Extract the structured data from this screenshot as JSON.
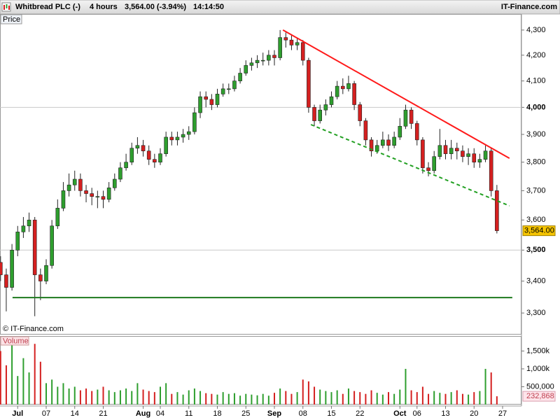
{
  "header": {
    "symbol": "Whitbread PLC (-)",
    "interval": "4 hours",
    "quote": "3,564.00 (-3.94%)",
    "time": "14:14:50",
    "brand": "IT-Finance.com"
  },
  "chart_data": [
    {
      "type": "candlestick",
      "panel_label": "Price",
      "watermark": "© IT-Finance.com",
      "yscale": "log",
      "up_color": "#2e9e2e",
      "down_color": "#d42020",
      "categories": [
        null,
        null,
        null,
        "Jul",
        null,
        null,
        null,
        null,
        "07",
        null,
        null,
        null,
        null,
        "14",
        null,
        null,
        null,
        null,
        "21",
        null,
        null,
        null,
        null,
        null,
        null,
        "Aug",
        null,
        null,
        "04",
        null,
        null,
        null,
        null,
        "11",
        null,
        null,
        null,
        null,
        "18",
        null,
        null,
        null,
        null,
        "25",
        null,
        null,
        null,
        null,
        "Sep",
        null,
        null,
        null,
        null,
        "08",
        null,
        null,
        null,
        null,
        "15",
        null,
        null,
        null,
        null,
        "22",
        null,
        null,
        null,
        null,
        null,
        null,
        "Oct",
        null,
        null,
        "06",
        null,
        null,
        null,
        null,
        "13",
        null,
        null,
        null,
        null,
        "20",
        null,
        null,
        null,
        null,
        "27"
      ],
      "open": [
        3460,
        3420,
        3380,
        3500,
        3560,
        3580,
        3600,
        3420,
        3400,
        3450,
        3580,
        3640,
        3700,
        3720,
        3740,
        3700,
        3690,
        3680,
        3680,
        3670,
        3710,
        3740,
        3780,
        3800,
        3850,
        3860,
        3840,
        3810,
        3800,
        3830,
        3890,
        3880,
        3890,
        3900,
        3910,
        3980,
        4040,
        4030,
        4010,
        4050,
        4070,
        4070,
        4100,
        4130,
        4160,
        4170,
        4180,
        4180,
        4200,
        4190,
        4270,
        4260,
        4240,
        4250,
        4180,
        4000,
        3950,
        3990,
        4010,
        4040,
        4080,
        4070,
        4090,
        4010,
        3950,
        3880,
        3840,
        3860,
        3880,
        3860,
        3890,
        3930,
        3990,
        3940,
        3880,
        3780,
        3770,
        3820,
        3860,
        3830,
        3850,
        3840,
        3820,
        3830,
        3800,
        3810,
        3840,
        3700,
        null
      ],
      "high": [
        3480,
        3440,
        3520,
        3580,
        3610,
        3625,
        3610,
        3440,
        3470,
        3600,
        3670,
        3730,
        3760,
        3770,
        3760,
        3720,
        3710,
        3700,
        3700,
        3730,
        3760,
        3800,
        3830,
        3870,
        3890,
        3880,
        3860,
        3830,
        3850,
        3910,
        3910,
        3910,
        3920,
        3930,
        4000,
        4060,
        4060,
        4050,
        4070,
        4090,
        4090,
        4120,
        4150,
        4180,
        4190,
        4200,
        4210,
        4220,
        4220,
        4300,
        4290,
        4280,
        4270,
        4260,
        4190,
        4010,
        4010,
        4030,
        4060,
        4100,
        4110,
        4120,
        4100,
        4020,
        3960,
        3890,
        3880,
        3910,
        3900,
        3910,
        3960,
        4010,
        4000,
        3950,
        3890,
        3800,
        3840,
        3920,
        3880,
        3880,
        3870,
        3860,
        3850,
        3850,
        3830,
        3860,
        3850,
        3720,
        null
      ],
      "low": [
        3400,
        3305,
        3370,
        3480,
        3540,
        3560,
        3290,
        3340,
        3390,
        3440,
        3570,
        3630,
        3680,
        3700,
        3680,
        3660,
        3650,
        3640,
        3640,
        3660,
        3700,
        3730,
        3770,
        3790,
        3830,
        3820,
        3790,
        3780,
        3790,
        3820,
        3860,
        3860,
        3870,
        3880,
        3900,
        3960,
        4000,
        3990,
        4000,
        4040,
        4050,
        4060,
        4090,
        4120,
        4140,
        4150,
        4160,
        4160,
        4160,
        4180,
        4230,
        4220,
        4220,
        4160,
        3980,
        3930,
        3940,
        3970,
        4000,
        4030,
        4050,
        4060,
        3990,
        3930,
        3860,
        3820,
        3830,
        3850,
        3840,
        3850,
        3880,
        3920,
        3920,
        3860,
        3760,
        3750,
        3760,
        3810,
        3810,
        3810,
        3810,
        3800,
        3790,
        3780,
        3780,
        3800,
        3680,
        3555,
        null
      ],
      "close": [
        3420,
        3380,
        3500,
        3560,
        3580,
        3600,
        3420,
        3400,
        3450,
        3580,
        3640,
        3700,
        3720,
        3740,
        3700,
        3690,
        3680,
        3680,
        3670,
        3710,
        3740,
        3780,
        3800,
        3850,
        3860,
        3840,
        3810,
        3800,
        3830,
        3890,
        3880,
        3890,
        3900,
        3910,
        3980,
        4040,
        4030,
        4010,
        4050,
        4070,
        4070,
        4100,
        4130,
        4160,
        4170,
        4180,
        4180,
        4200,
        4190,
        4270,
        4260,
        4240,
        4250,
        4180,
        4000,
        3950,
        3990,
        4010,
        4040,
        4080,
        4070,
        4090,
        4010,
        3950,
        3880,
        3840,
        3860,
        3880,
        3860,
        3890,
        3930,
        3990,
        3940,
        3880,
        3780,
        3770,
        3820,
        3860,
        3830,
        3850,
        3840,
        3820,
        3830,
        3800,
        3810,
        3840,
        3700,
        3564,
        null
      ],
      "last_label": "3,564.00",
      "last_label_color": "#f5c400",
      "ylim": [
        3234,
        4365
      ],
      "yticks": [
        {
          "value": 3300,
          "label": "3,300"
        },
        {
          "value": 3400,
          "label": "3,400"
        },
        {
          "value": 3500,
          "label": "3,500"
        },
        {
          "value": 3600,
          "label": "3,600"
        },
        {
          "value": 3700,
          "label": "3,700"
        },
        {
          "value": 3800,
          "label": "3,800"
        },
        {
          "value": 3900,
          "label": "3,900"
        },
        {
          "value": 4000,
          "label": "4,000"
        },
        {
          "value": 4100,
          "label": "4,100"
        },
        {
          "value": 4200,
          "label": "4,200"
        },
        {
          "value": 4300,
          "label": "4,300"
        }
      ],
      "trendlines": [
        {
          "x": [
            49.5,
            89.2
          ],
          "y": [
            4300,
            3814
          ],
          "color": "#ff1a1a",
          "dash": false
        },
        {
          "x": [
            54.4,
            89.2
          ],
          "y": [
            3936,
            3648
          ],
          "color": "#22a022",
          "dash": true
        },
        {
          "x": [
            2.1,
            89.7
          ],
          "y": [
            3348,
            3348
          ],
          "color": "#1e7a1e",
          "dash": false
        }
      ]
    },
    {
      "type": "bar",
      "panel_label": "Volume",
      "values": [
        1500000,
        1100000,
        1900000,
        800000,
        1300000,
        900000,
        1700000,
        1200000,
        600000,
        700000,
        500000,
        600000,
        450000,
        500000,
        400000,
        450000,
        380000,
        420000,
        500000,
        400000,
        350000,
        400000,
        450000,
        380000,
        600000,
        420000,
        380000,
        350000,
        500000,
        600000,
        300000,
        350000,
        280000,
        400000,
        450000,
        380000,
        320000,
        300000,
        280000,
        350000,
        300000,
        320000,
        250000,
        300000,
        280000,
        260000,
        300000,
        250000,
        330000,
        450000,
        380000,
        300000,
        350000,
        700000,
        650000,
        500000,
        420000,
        380000,
        350000,
        400000,
        300000,
        450000,
        380000,
        350000,
        300000,
        400000,
        330000,
        280000,
        350000,
        300000,
        420000,
        1000000,
        400000,
        350000,
        500000,
        300000,
        380000,
        330000,
        300000,
        350000,
        400000,
        300000,
        280000,
        350000,
        380000,
        1000000,
        900000,
        232868,
        null
      ],
      "value_labels": [
        null,
        null,
        null,
        null,
        null,
        null,
        null,
        null,
        null,
        null,
        null,
        null,
        null,
        null,
        null,
        null,
        null,
        null,
        null,
        null,
        null,
        null,
        null,
        null,
        null,
        null,
        null,
        null,
        null,
        null,
        null,
        null,
        null,
        null,
        null,
        null,
        null,
        null,
        null,
        null,
        null,
        null,
        null,
        null,
        null,
        null,
        null,
        null,
        null,
        null,
        null,
        null,
        null,
        null,
        null,
        null,
        null,
        null,
        null,
        null,
        null,
        null,
        null,
        null,
        null,
        null,
        null,
        null,
        null,
        null,
        null,
        null,
        null,
        null,
        null,
        null,
        null,
        null,
        null,
        null,
        null,
        null,
        null,
        null,
        null,
        null,
        null,
        "232,868",
        null
      ],
      "ylim": [
        0,
        1920000
      ],
      "yticks": [
        {
          "value": 500000,
          "label": "500,000"
        },
        {
          "value": 1000000,
          "label": "1,000k"
        },
        {
          "value": 1500000,
          "label": "1,500k"
        }
      ]
    }
  ]
}
